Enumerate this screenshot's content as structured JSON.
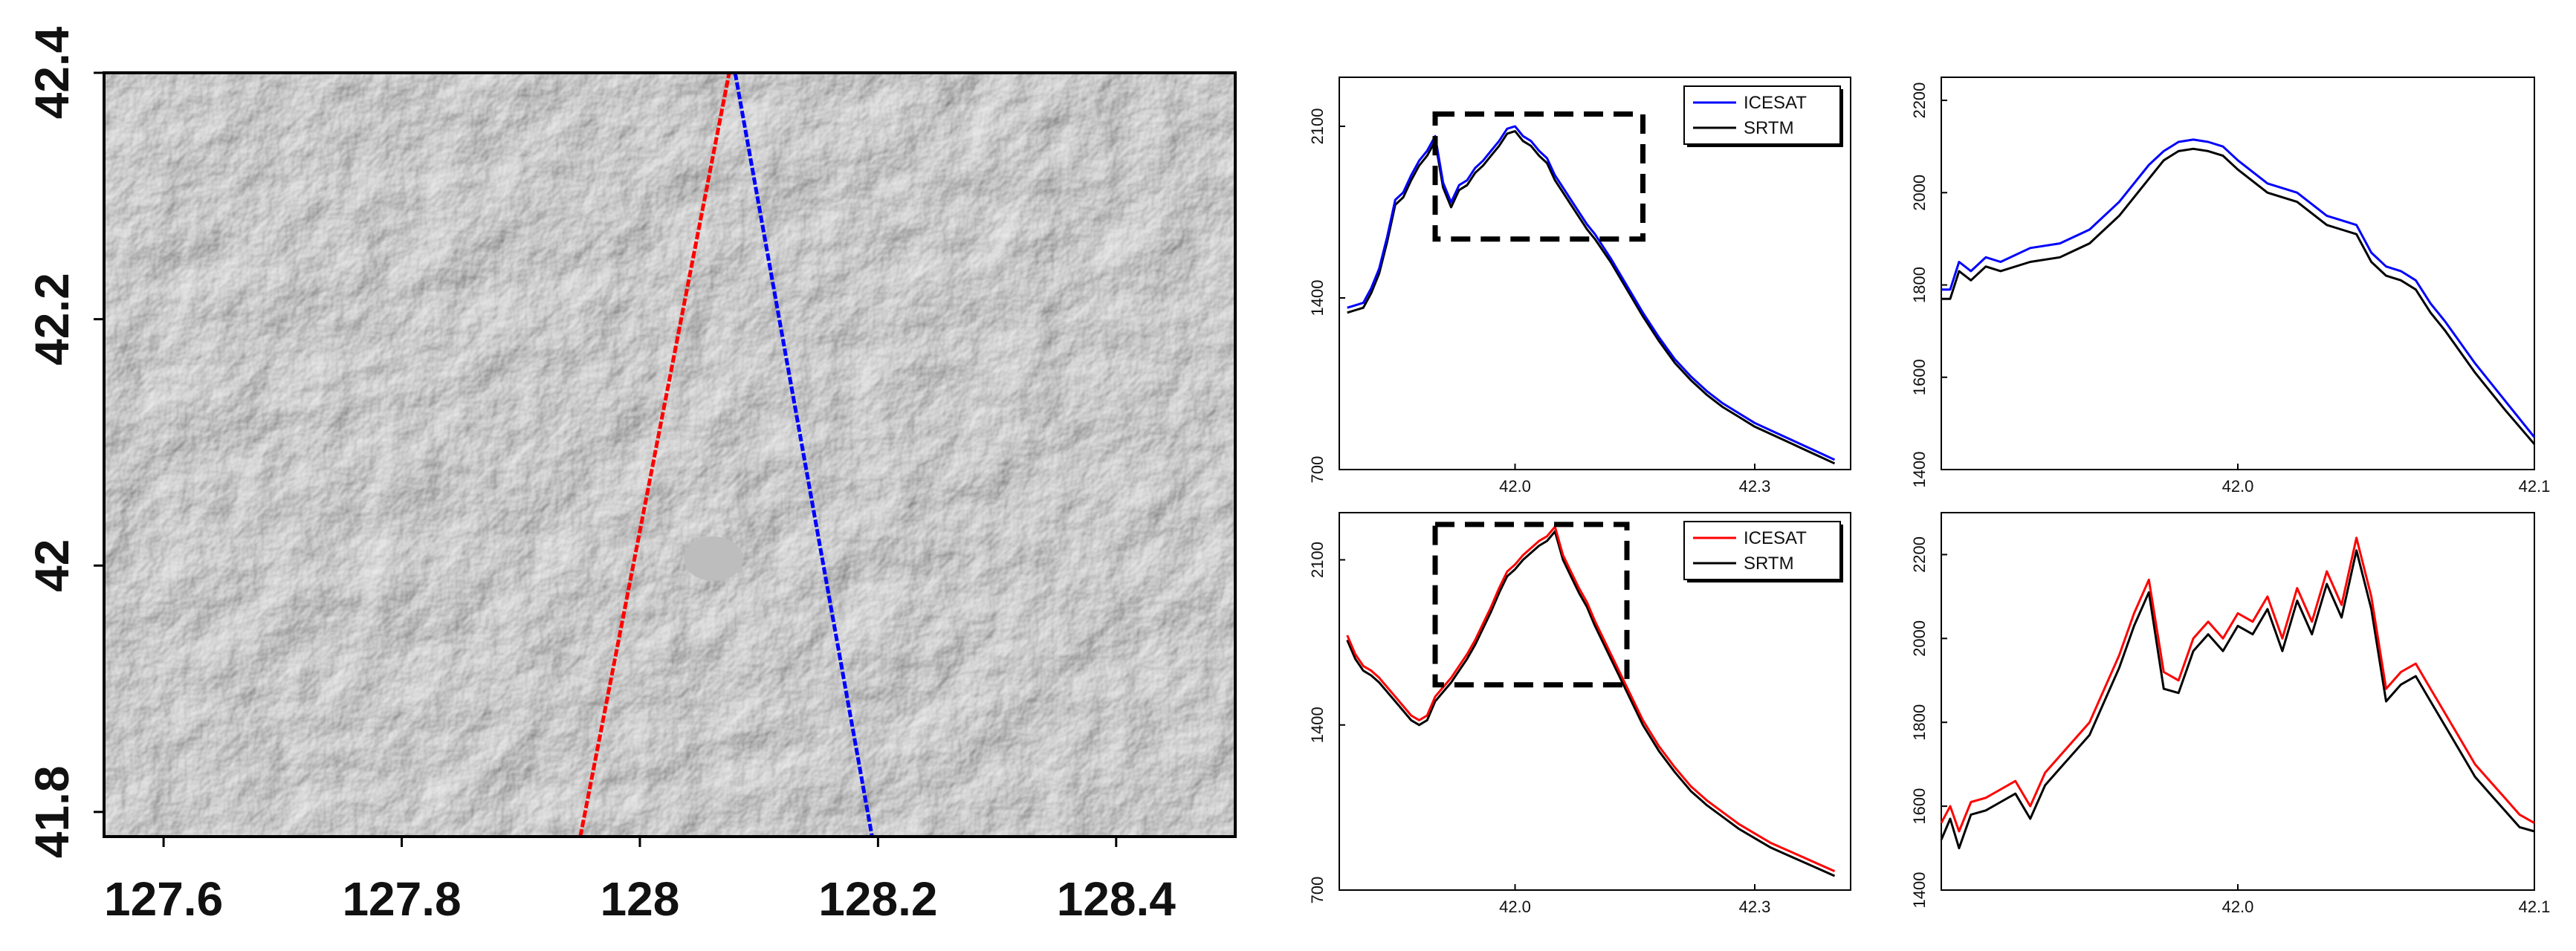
{
  "chart_data": [
    {
      "id": "map",
      "type": "scatter",
      "title": "",
      "xlabel": "",
      "ylabel": "",
      "xlim": [
        127.55,
        128.5
      ],
      "ylim": [
        41.78,
        42.4
      ],
      "x_ticks": [
        "127.6",
        "127.8",
        "128",
        "128.2",
        "128.4"
      ],
      "x_tick_values": [
        127.6,
        127.8,
        128.0,
        128.2,
        128.4
      ],
      "y_ticks": [
        "41.8",
        "42",
        "42.2",
        "42.4"
      ],
      "y_tick_values": [
        41.8,
        42.0,
        42.2,
        42.4
      ],
      "background": "shaded-relief DEM (grey hillshade)",
      "series": [
        {
          "color": "#ff0000",
          "x": [
            127.95,
            128.075
          ],
          "y": [
            41.78,
            42.4
          ]
        },
        {
          "color": "#0000ff",
          "x": [
            128.08,
            128.195
          ],
          "y": [
            42.4,
            41.78
          ]
        }
      ]
    },
    {
      "id": "profile-blue",
      "type": "line",
      "title": "",
      "xlabel": "",
      "ylabel": "",
      "xlim": [
        41.78,
        42.42
      ],
      "ylim": [
        700,
        2300
      ],
      "x_ticks": [
        "42.0",
        "42.3"
      ],
      "x_tick_values": [
        42.0,
        42.3
      ],
      "y_ticks": [
        "700",
        "1400",
        "2100"
      ],
      "y_tick_values": [
        700,
        1400,
        2100
      ],
      "legend": "top-right",
      "highlight_box": {
        "x": [
          41.9,
          42.16
        ],
        "y": [
          1640,
          2150
        ]
      },
      "series": [
        {
          "name": "ICESAT",
          "color": "#0000ff",
          "x": [
            41.79,
            41.8,
            41.81,
            41.82,
            41.83,
            41.84,
            41.85,
            41.86,
            41.87,
            41.88,
            41.89,
            41.9,
            41.91,
            41.92,
            41.93,
            41.94,
            41.95,
            41.96,
            41.97,
            41.98,
            41.99,
            42.0,
            42.01,
            42.02,
            42.03,
            42.04,
            42.05,
            42.06,
            42.07,
            42.08,
            42.09,
            42.1,
            42.12,
            42.14,
            42.16,
            42.18,
            42.2,
            42.22,
            42.24,
            42.26,
            42.28,
            42.3,
            42.32,
            42.34,
            42.36,
            42.38,
            42.4
          ],
          "y": [
            1360,
            1370,
            1380,
            1440,
            1520,
            1650,
            1800,
            1830,
            1900,
            1960,
            2000,
            2060,
            1870,
            1790,
            1860,
            1880,
            1930,
            1960,
            2000,
            2040,
            2090,
            2100,
            2060,
            2040,
            2000,
            1970,
            1900,
            1850,
            1800,
            1750,
            1700,
            1660,
            1560,
            1450,
            1340,
            1240,
            1150,
            1080,
            1020,
            970,
            930,
            890,
            860,
            830,
            800,
            770,
            740
          ]
        },
        {
          "name": "SRTM",
          "color": "#000000",
          "x": [
            41.79,
            41.8,
            41.81,
            41.82,
            41.83,
            41.84,
            41.85,
            41.86,
            41.87,
            41.88,
            41.89,
            41.9,
            41.91,
            41.92,
            41.93,
            41.94,
            41.95,
            41.96,
            41.97,
            41.98,
            41.99,
            42.0,
            42.01,
            42.02,
            42.03,
            42.04,
            42.05,
            42.06,
            42.07,
            42.08,
            42.09,
            42.1,
            42.12,
            42.14,
            42.16,
            42.18,
            42.2,
            42.22,
            42.24,
            42.26,
            42.28,
            42.3,
            42.32,
            42.34,
            42.36,
            42.38,
            42.4
          ],
          "y": [
            1340,
            1350,
            1360,
            1420,
            1500,
            1630,
            1780,
            1810,
            1880,
            1940,
            1980,
            2040,
            1850,
            1770,
            1840,
            1860,
            1910,
            1940,
            1980,
            2020,
            2070,
            2080,
            2040,
            2020,
            1980,
            1950,
            1880,
            1830,
            1780,
            1730,
            1680,
            1640,
            1545,
            1435,
            1325,
            1225,
            1135,
            1065,
            1005,
            955,
            915,
            875,
            845,
            815,
            785,
            755,
            725
          ]
        }
      ]
    },
    {
      "id": "zoom-blue",
      "type": "line",
      "title": "",
      "xlabel": "",
      "ylabel": "",
      "xlim": [
        41.9,
        42.1
      ],
      "ylim": [
        1400,
        2250
      ],
      "x_ticks": [
        "42.0",
        "42.1"
      ],
      "x_tick_values": [
        42.0,
        42.1
      ],
      "y_ticks": [
        "1400",
        "1600",
        "1800",
        "2000",
        "2200"
      ],
      "y_tick_values": [
        1400,
        1600,
        1800,
        2000,
        2200
      ],
      "series": [
        {
          "name": "ICESAT",
          "color": "#0000ff",
          "x": [
            41.9,
            41.903,
            41.906,
            41.91,
            41.915,
            41.92,
            41.93,
            41.94,
            41.95,
            41.96,
            41.97,
            41.975,
            41.98,
            41.985,
            41.99,
            41.995,
            42.0,
            42.01,
            42.02,
            42.03,
            42.035,
            42.04,
            42.045,
            42.05,
            42.055,
            42.06,
            42.065,
            42.07,
            42.08,
            42.09,
            42.1
          ],
          "y": [
            1790,
            1790,
            1850,
            1830,
            1860,
            1850,
            1880,
            1890,
            1920,
            1980,
            2060,
            2090,
            2110,
            2115,
            2110,
            2100,
            2070,
            2020,
            2000,
            1950,
            1940,
            1930,
            1870,
            1840,
            1830,
            1810,
            1760,
            1720,
            1630,
            1550,
            1470
          ]
        },
        {
          "name": "SRTM",
          "color": "#000000",
          "x": [
            41.9,
            41.903,
            41.906,
            41.91,
            41.915,
            41.92,
            41.93,
            41.94,
            41.95,
            41.96,
            41.97,
            41.975,
            41.98,
            41.985,
            41.99,
            41.995,
            42.0,
            42.01,
            42.02,
            42.03,
            42.035,
            42.04,
            42.045,
            42.05,
            42.055,
            42.06,
            42.065,
            42.07,
            42.08,
            42.09,
            42.1
          ],
          "y": [
            1770,
            1770,
            1830,
            1810,
            1840,
            1830,
            1850,
            1860,
            1890,
            1950,
            2030,
            2070,
            2090,
            2095,
            2090,
            2080,
            2050,
            2000,
            1980,
            1930,
            1920,
            1910,
            1850,
            1820,
            1810,
            1790,
            1740,
            1700,
            1610,
            1530,
            1455
          ]
        }
      ]
    },
    {
      "id": "profile-red",
      "type": "line",
      "title": "",
      "xlabel": "",
      "ylabel": "",
      "xlim": [
        41.78,
        42.42
      ],
      "ylim": [
        700,
        2300
      ],
      "x_ticks": [
        "42.0",
        "42.3"
      ],
      "x_tick_values": [
        42.0,
        42.3
      ],
      "y_ticks": [
        "700",
        "1400",
        "2100"
      ],
      "y_tick_values": [
        700,
        1400,
        2100
      ],
      "legend": "top-right",
      "highlight_box": {
        "x": [
          41.9,
          42.14
        ],
        "y": [
          1570,
          2250
        ]
      },
      "series": [
        {
          "name": "ICESAT",
          "color": "#ff0000",
          "x": [
            41.79,
            41.8,
            41.81,
            41.82,
            41.83,
            41.84,
            41.85,
            41.86,
            41.87,
            41.88,
            41.89,
            41.9,
            41.91,
            41.92,
            41.93,
            41.94,
            41.95,
            41.96,
            41.97,
            41.98,
            41.99,
            42.0,
            42.01,
            42.02,
            42.03,
            42.04,
            42.05,
            42.06,
            42.07,
            42.08,
            42.09,
            42.1,
            42.12,
            42.14,
            42.16,
            42.18,
            42.2,
            42.22,
            42.24,
            42.26,
            42.28,
            42.3,
            42.32,
            42.34,
            42.36,
            42.38,
            42.4
          ],
          "y": [
            1780,
            1700,
            1650,
            1630,
            1600,
            1560,
            1520,
            1480,
            1440,
            1420,
            1440,
            1520,
            1560,
            1600,
            1650,
            1700,
            1760,
            1830,
            1900,
            1980,
            2050,
            2080,
            2120,
            2150,
            2180,
            2200,
            2240,
            2120,
            2050,
            1980,
            1920,
            1840,
            1700,
            1560,
            1420,
            1310,
            1220,
            1140,
            1080,
            1030,
            980,
            940,
            900,
            870,
            840,
            810,
            780
          ]
        },
        {
          "name": "SRTM",
          "color": "#000000",
          "x": [
            41.79,
            41.8,
            41.81,
            41.82,
            41.83,
            41.84,
            41.85,
            41.86,
            41.87,
            41.88,
            41.89,
            41.9,
            41.91,
            41.92,
            41.93,
            41.94,
            41.95,
            41.96,
            41.97,
            41.98,
            41.99,
            42.0,
            42.01,
            42.02,
            42.03,
            42.04,
            42.05,
            42.06,
            42.07,
            42.08,
            42.09,
            42.1,
            42.12,
            42.14,
            42.16,
            42.18,
            42.2,
            42.22,
            42.24,
            42.26,
            42.28,
            42.3,
            42.32,
            42.34,
            42.36,
            42.38,
            42.4
          ],
          "y": [
            1760,
            1680,
            1630,
            1610,
            1580,
            1540,
            1500,
            1460,
            1420,
            1400,
            1420,
            1500,
            1540,
            1580,
            1630,
            1680,
            1740,
            1810,
            1880,
            1960,
            2030,
            2060,
            2100,
            2130,
            2160,
            2180,
            2220,
            2100,
            2030,
            1960,
            1900,
            1820,
            1680,
            1540,
            1400,
            1290,
            1200,
            1120,
            1060,
            1010,
            960,
            920,
            880,
            850,
            820,
            790,
            760
          ]
        }
      ]
    },
    {
      "id": "zoom-red",
      "type": "line",
      "title": "",
      "xlabel": "",
      "ylabel": "",
      "xlim": [
        41.9,
        42.1
      ],
      "ylim": [
        1400,
        2300
      ],
      "x_ticks": [
        "42.0",
        "42.1"
      ],
      "x_tick_values": [
        42.0,
        42.1
      ],
      "y_ticks": [
        "1400",
        "1600",
        "1800",
        "2000",
        "2200"
      ],
      "y_tick_values": [
        1400,
        1600,
        1800,
        2000,
        2200
      ],
      "series": [
        {
          "name": "ICESAT",
          "color": "#ff0000",
          "x": [
            41.9,
            41.903,
            41.906,
            41.91,
            41.915,
            41.92,
            41.925,
            41.93,
            41.935,
            41.94,
            41.945,
            41.95,
            41.955,
            41.96,
            41.965,
            41.97,
            41.975,
            41.98,
            41.985,
            41.99,
            41.995,
            42.0,
            42.005,
            42.01,
            42.015,
            42.02,
            42.025,
            42.03,
            42.035,
            42.04,
            42.045,
            42.05,
            42.055,
            42.06,
            42.065,
            42.07,
            42.075,
            42.08,
            42.085,
            42.09,
            42.095,
            42.1
          ],
          "y": [
            1560,
            1600,
            1540,
            1610,
            1620,
            1640,
            1660,
            1600,
            1680,
            1720,
            1760,
            1800,
            1880,
            1960,
            2060,
            2140,
            1920,
            1900,
            2000,
            2040,
            2000,
            2060,
            2040,
            2100,
            2000,
            2120,
            2040,
            2160,
            2080,
            2240,
            2100,
            1880,
            1920,
            1940,
            1880,
            1820,
            1760,
            1700,
            1660,
            1620,
            1580,
            1560
          ]
        },
        {
          "name": "SRTM",
          "color": "#000000",
          "x": [
            41.9,
            41.903,
            41.906,
            41.91,
            41.915,
            41.92,
            41.925,
            41.93,
            41.935,
            41.94,
            41.945,
            41.95,
            41.955,
            41.96,
            41.965,
            41.97,
            41.975,
            41.98,
            41.985,
            41.99,
            41.995,
            42.0,
            42.005,
            42.01,
            42.015,
            42.02,
            42.025,
            42.03,
            42.035,
            42.04,
            42.045,
            42.05,
            42.055,
            42.06,
            42.065,
            42.07,
            42.075,
            42.08,
            42.085,
            42.09,
            42.095,
            42.1
          ],
          "y": [
            1520,
            1570,
            1500,
            1580,
            1590,
            1610,
            1630,
            1570,
            1650,
            1690,
            1730,
            1770,
            1850,
            1930,
            2030,
            2110,
            1880,
            1870,
            1970,
            2010,
            1970,
            2030,
            2010,
            2070,
            1970,
            2090,
            2010,
            2130,
            2050,
            2210,
            2070,
            1850,
            1890,
            1910,
            1850,
            1790,
            1730,
            1670,
            1630,
            1590,
            1550,
            1540
          ]
        }
      ]
    }
  ]
}
